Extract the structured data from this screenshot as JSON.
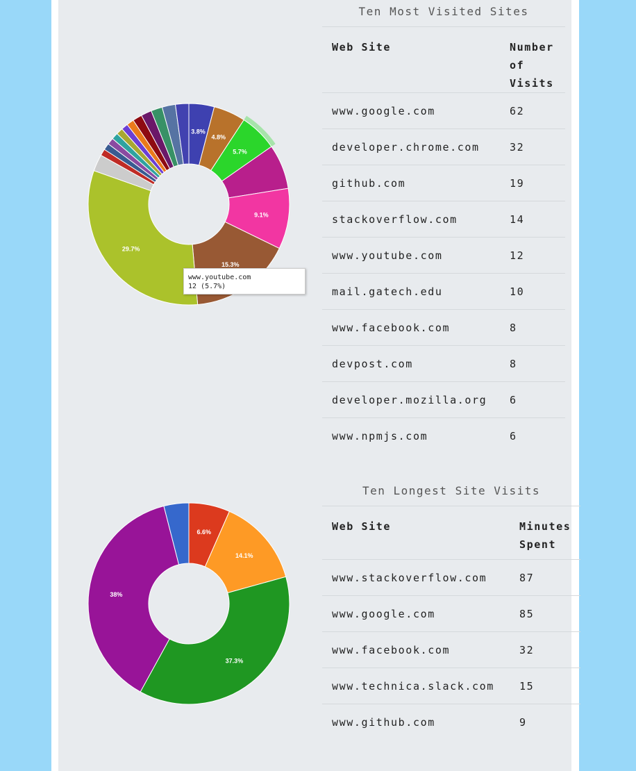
{
  "most_visited": {
    "title": "Ten Most Visited Sites",
    "headers": [
      "Web Site",
      "Number of Visits"
    ],
    "rows": [
      {
        "site": "www.google.com",
        "value": "62"
      },
      {
        "site": "developer.chrome.com",
        "value": "32"
      },
      {
        "site": "github.com",
        "value": "19"
      },
      {
        "site": "stackoverflow.com",
        "value": "14"
      },
      {
        "site": "www.youtube.com",
        "value": "12"
      },
      {
        "site": "mail.gatech.edu",
        "value": "10"
      },
      {
        "site": "www.facebook.com",
        "value": "8"
      },
      {
        "site": "devpost.com",
        "value": "8"
      },
      {
        "site": "developer.mozilla.org",
        "value": "6"
      },
      {
        "site": "www.npmjs.com",
        "value": "6"
      }
    ]
  },
  "longest_visits": {
    "title": "Ten Longest Site Visits",
    "headers": [
      "Web Site",
      "Minutes Spent"
    ],
    "rows": [
      {
        "site": "www.stackoverflow.com",
        "value": "87"
      },
      {
        "site": "www.google.com",
        "value": "85"
      },
      {
        "site": "www.facebook.com",
        "value": "32"
      },
      {
        "site": "www.technica.slack.com",
        "value": "15"
      },
      {
        "site": "www.github.com",
        "value": "9"
      }
    ]
  },
  "tooltip": {
    "line1": "www.youtube.com",
    "line2": "12 (5.7%)"
  },
  "chart_data": [
    {
      "type": "pie",
      "donut": true,
      "values": [
        3.8,
        4.8,
        5.7,
        6.7,
        9.1,
        15.3,
        29.7,
        2.5,
        1.0,
        1.0,
        1.0,
        1.0,
        1.0,
        1.0,
        1.1,
        1.4,
        1.6,
        1.7,
        2.0,
        2.0
      ],
      "colors": [
        "#3e41b0",
        "#b8722b",
        "#2bd62b",
        "#b81f8c",
        "#f236a2",
        "#985934",
        "#abc22b",
        "#cccccc",
        "#bf2b25",
        "#395b91",
        "#8a4aa1",
        "#2ea3a0",
        "#a8a832",
        "#6b3fd4",
        "#ea7a1b",
        "#8e0b11",
        "#6b1868",
        "#389166",
        "#5673a3",
        "#4242b0"
      ],
      "labels": [
        "3.8%",
        "4.8%",
        "5.7%",
        "",
        "9.1%",
        "15.3%",
        "29.7%",
        "",
        "",
        "",
        "",
        "",
        "",
        "",
        "",
        "",
        "",
        "",
        "",
        ""
      ],
      "highlight_index": 2
    },
    {
      "type": "pie",
      "donut": true,
      "values": [
        6.6,
        14.1,
        37.3,
        38,
        4.0
      ],
      "colors": [
        "#dc3a1e",
        "#fe9a25",
        "#1f9722",
        "#981498",
        "#3668cc"
      ],
      "labels": [
        "6.6%",
        "14.1%",
        "37.3%",
        "38%",
        ""
      ]
    }
  ]
}
